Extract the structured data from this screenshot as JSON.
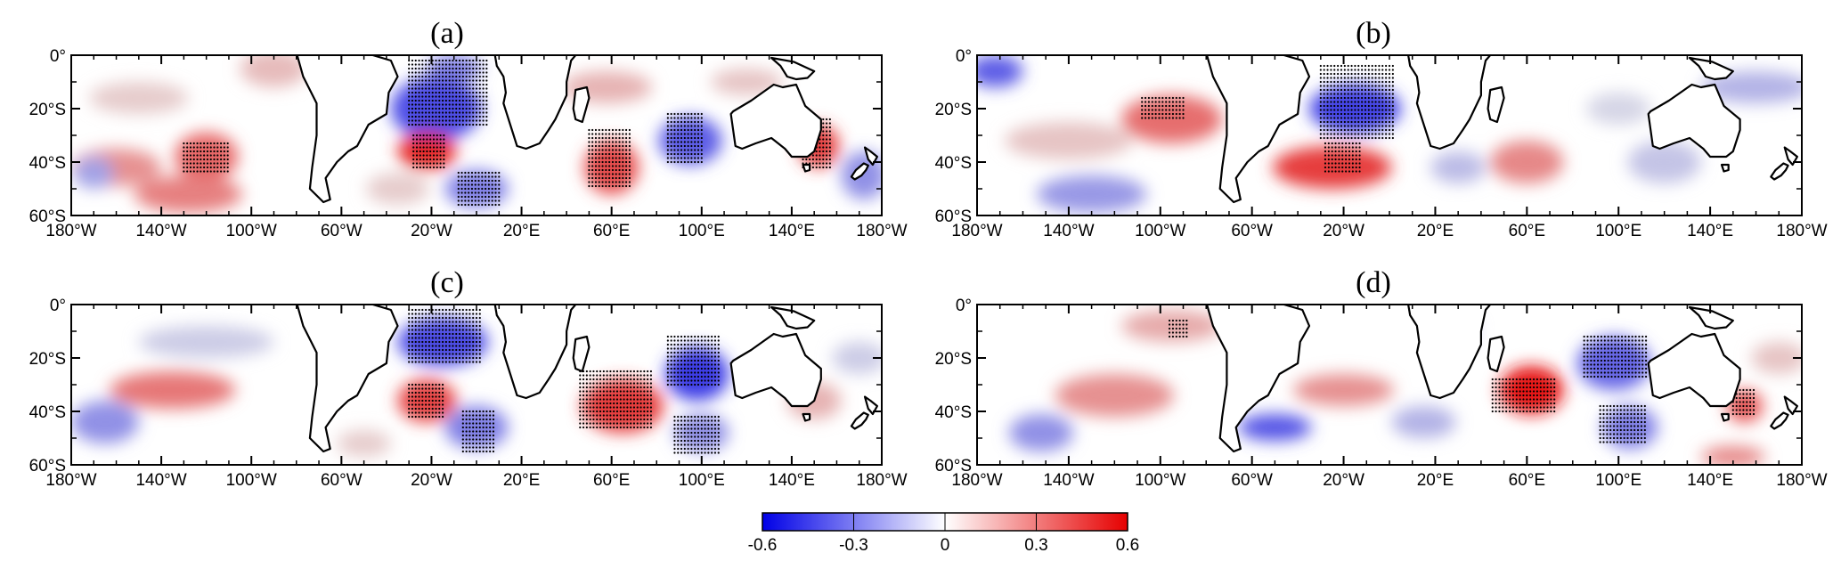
{
  "panels": [
    {
      "label": "(a)",
      "blobs": [
        {
          "lon": -160,
          "lat": -42,
          "rx": 20,
          "ry": 7,
          "v": 0.26
        },
        {
          "lon": -120,
          "lat": -38,
          "rx": 14,
          "ry": 9,
          "v": 0.36
        },
        {
          "lon": -128,
          "lat": -52,
          "rx": 24,
          "ry": 7,
          "v": 0.3
        },
        {
          "lon": -170,
          "lat": -44,
          "rx": 9,
          "ry": 6,
          "v": -0.22
        },
        {
          "lon": -90,
          "lat": -5,
          "rx": 15,
          "ry": 7,
          "v": 0.16
        },
        {
          "lon": -150,
          "lat": -16,
          "rx": 22,
          "ry": 6,
          "v": 0.12
        },
        {
          "lon": -18,
          "lat": -20,
          "rx": 20,
          "ry": 12,
          "v": -0.42
        },
        {
          "lon": -22,
          "lat": -36,
          "rx": 13,
          "ry": 7,
          "v": 0.5
        },
        {
          "lon": 0,
          "lat": -50,
          "rx": 14,
          "ry": 7,
          "v": -0.3
        },
        {
          "lon": -10,
          "lat": -5,
          "rx": 12,
          "ry": 5,
          "v": -0.3
        },
        {
          "lon": 60,
          "lat": -42,
          "rx": 12,
          "ry": 10,
          "v": 0.42
        },
        {
          "lon": 95,
          "lat": -32,
          "rx": 14,
          "ry": 9,
          "v": -0.38
        },
        {
          "lon": 58,
          "lat": -12,
          "rx": 20,
          "ry": 6,
          "v": 0.18
        },
        {
          "lon": 152,
          "lat": -34,
          "rx": 9,
          "ry": 8,
          "v": 0.45
        },
        {
          "lon": 172,
          "lat": -45,
          "rx": 10,
          "ry": 9,
          "v": -0.26
        },
        {
          "lon": 120,
          "lat": -10,
          "rx": 16,
          "ry": 5,
          "v": 0.14
        },
        {
          "lon": -35,
          "lat": -50,
          "rx": 14,
          "ry": 6,
          "v": 0.12
        }
      ],
      "stipples": [
        {
          "lon0": -130,
          "lon1": -110,
          "lat0": -44,
          "lat1": -33
        },
        {
          "lon0": -30,
          "lon1": 5,
          "lat0": -27,
          "lat1": -2
        },
        {
          "lon0": -28,
          "lon1": -14,
          "lat0": -42,
          "lat1": -30
        },
        {
          "lon0": -8,
          "lon1": 10,
          "lat0": -56,
          "lat1": -44
        },
        {
          "lon0": 50,
          "lon1": 68,
          "lat0": -50,
          "lat1": -28
        },
        {
          "lon0": 85,
          "lon1": 100,
          "lat0": -40,
          "lat1": -22
        },
        {
          "lon0": 145,
          "lon1": 158,
          "lat0": -42,
          "lat1": -24
        }
      ]
    },
    {
      "label": "(b)",
      "blobs": [
        {
          "lon": -172,
          "lat": -6,
          "rx": 12,
          "ry": 6,
          "v": -0.38
        },
        {
          "lon": -95,
          "lat": -24,
          "rx": 22,
          "ry": 9,
          "v": 0.34
        },
        {
          "lon": -140,
          "lat": -32,
          "rx": 28,
          "ry": 7,
          "v": 0.14
        },
        {
          "lon": -130,
          "lat": -52,
          "rx": 24,
          "ry": 7,
          "v": -0.24
        },
        {
          "lon": -15,
          "lat": -20,
          "rx": 20,
          "ry": 9,
          "v": -0.44
        },
        {
          "lon": -25,
          "lat": -42,
          "rx": 26,
          "ry": 8,
          "v": 0.46
        },
        {
          "lon": 60,
          "lat": -40,
          "rx": 16,
          "ry": 8,
          "v": 0.28
        },
        {
          "lon": 160,
          "lat": -12,
          "rx": 24,
          "ry": 6,
          "v": -0.18
        },
        {
          "lon": 120,
          "lat": -40,
          "rx": 16,
          "ry": 8,
          "v": -0.14
        },
        {
          "lon": 30,
          "lat": -42,
          "rx": 12,
          "ry": 6,
          "v": -0.16
        },
        {
          "lon": 100,
          "lat": -20,
          "rx": 14,
          "ry": 6,
          "v": -0.1
        }
      ],
      "stipples": [
        {
          "lon0": -30,
          "lon1": 2,
          "lat0": -32,
          "lat1": -4
        },
        {
          "lon0": -28,
          "lon1": -12,
          "lat0": -44,
          "lat1": -33
        },
        {
          "lon0": -108,
          "lon1": -90,
          "lat0": -24,
          "lat1": -16
        }
      ]
    },
    {
      "label": "(c)",
      "blobs": [
        {
          "lon": -135,
          "lat": -32,
          "rx": 28,
          "ry": 7,
          "v": 0.32
        },
        {
          "lon": -165,
          "lat": -44,
          "rx": 15,
          "ry": 8,
          "v": -0.26
        },
        {
          "lon": -120,
          "lat": -14,
          "rx": 30,
          "ry": 6,
          "v": -0.12
        },
        {
          "lon": -15,
          "lat": -14,
          "rx": 20,
          "ry": 9,
          "v": -0.42
        },
        {
          "lon": -22,
          "lat": -36,
          "rx": 13,
          "ry": 8,
          "v": 0.44
        },
        {
          "lon": 0,
          "lat": -46,
          "rx": 14,
          "ry": 8,
          "v": -0.3
        },
        {
          "lon": 65,
          "lat": -38,
          "rx": 18,
          "ry": 10,
          "v": 0.46
        },
        {
          "lon": 98,
          "lat": -26,
          "rx": 14,
          "ry": 10,
          "v": -0.46
        },
        {
          "lon": 100,
          "lat": -48,
          "rx": 12,
          "ry": 7,
          "v": -0.26
        },
        {
          "lon": 150,
          "lat": -36,
          "rx": 12,
          "ry": 7,
          "v": 0.18
        },
        {
          "lon": 170,
          "lat": -20,
          "rx": 12,
          "ry": 6,
          "v": -0.12
        },
        {
          "lon": -50,
          "lat": -52,
          "rx": 12,
          "ry": 5,
          "v": 0.12
        }
      ],
      "stipples": [
        {
          "lon0": -30,
          "lon1": 2,
          "lat0": -22,
          "lat1": -2
        },
        {
          "lon0": -30,
          "lon1": -15,
          "lat0": -42,
          "lat1": -30
        },
        {
          "lon0": -6,
          "lon1": 8,
          "lat0": -56,
          "lat1": -40
        },
        {
          "lon0": 46,
          "lon1": 78,
          "lat0": -46,
          "lat1": -25
        },
        {
          "lon0": 85,
          "lon1": 108,
          "lat0": -30,
          "lat1": -12
        },
        {
          "lon0": 88,
          "lon1": 108,
          "lat0": -56,
          "lat1": -42
        }
      ]
    },
    {
      "label": "(d)",
      "blobs": [
        {
          "lon": -120,
          "lat": -34,
          "rx": 26,
          "ry": 8,
          "v": 0.26
        },
        {
          "lon": -152,
          "lat": -48,
          "rx": 14,
          "ry": 7,
          "v": -0.26
        },
        {
          "lon": -95,
          "lat": -8,
          "rx": 22,
          "ry": 6,
          "v": 0.2
        },
        {
          "lon": -50,
          "lat": -46,
          "rx": 16,
          "ry": 5,
          "v": -0.4
        },
        {
          "lon": -20,
          "lat": -32,
          "rx": 22,
          "ry": 6,
          "v": 0.26
        },
        {
          "lon": 15,
          "lat": -44,
          "rx": 14,
          "ry": 6,
          "v": -0.18
        },
        {
          "lon": 62,
          "lat": -32,
          "rx": 14,
          "ry": 9,
          "v": 0.54
        },
        {
          "lon": 98,
          "lat": -22,
          "rx": 16,
          "ry": 10,
          "v": -0.36
        },
        {
          "lon": 105,
          "lat": -46,
          "rx": 12,
          "ry": 8,
          "v": -0.3
        },
        {
          "lon": 155,
          "lat": -38,
          "rx": 8,
          "ry": 6,
          "v": 0.4
        },
        {
          "lon": 150,
          "lat": -57,
          "rx": 14,
          "ry": 4,
          "v": 0.28
        },
        {
          "lon": 170,
          "lat": -20,
          "rx": 12,
          "ry": 6,
          "v": 0.14
        },
        {
          "lon": 30,
          "lat": -10,
          "rx": 8,
          "ry": 6,
          "v": -0.16
        }
      ],
      "stipples": [
        {
          "lon0": 45,
          "lon1": 72,
          "lat0": -40,
          "lat1": -28
        },
        {
          "lon0": 85,
          "lon1": 112,
          "lat0": -28,
          "lat1": -12
        },
        {
          "lon0": 92,
          "lon1": 112,
          "lat0": -52,
          "lat1": -38
        },
        {
          "lon0": 150,
          "lon1": 160,
          "lat0": -42,
          "lat1": -32
        },
        {
          "lon0": -96,
          "lon1": -88,
          "lat0": -12,
          "lat1": -6
        }
      ]
    }
  ],
  "axes": {
    "x_ticks": [
      -180,
      -140,
      -100,
      -60,
      -20,
      20,
      60,
      100,
      140,
      180
    ],
    "x_tick_labels": [
      "180°W",
      "140°W",
      "100°W",
      "60°W",
      "20°W",
      "20°E",
      "60°E",
      "100°E",
      "140°E",
      "180°W"
    ],
    "y_ticks": [
      0,
      -20,
      -40,
      -60
    ],
    "y_tick_labels": [
      "0°",
      "20°S",
      "40°S",
      "60°S"
    ],
    "lon_range": [
      -180,
      180
    ],
    "lat_range": [
      -60,
      0
    ],
    "minor_x_step": 10,
    "minor_y_step": 10
  },
  "colorbar": {
    "min": -0.6,
    "max": 0.6,
    "ticks": [
      -0.6,
      -0.3,
      0,
      0.3,
      0.6
    ],
    "tick_labels": [
      "-0.6",
      "-0.3",
      "0",
      "0.3",
      "0.6"
    ],
    "colors": [
      "#0000e6",
      "#ffffff",
      "#e60000"
    ]
  },
  "land_color": "#ffffff",
  "coast_color": "#000000"
}
